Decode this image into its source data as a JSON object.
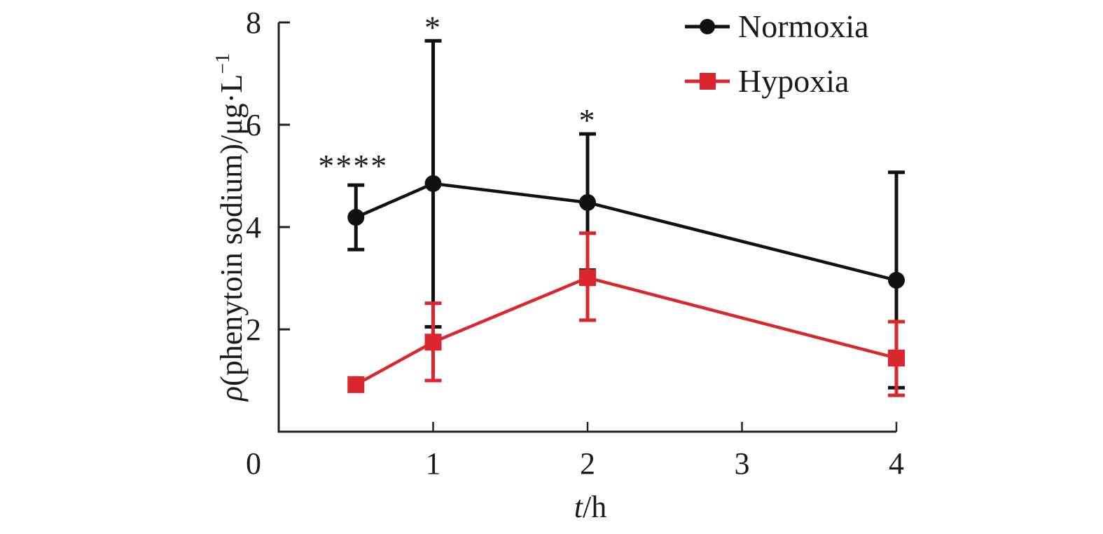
{
  "chart_data": {
    "type": "line",
    "title": "",
    "xlabel": {
      "italic": "t",
      "rest": "/h"
    },
    "ylabel": {
      "italic": "ρ",
      "rest": "(phenytoin sodium)/μg·L",
      "superscript": "−1"
    },
    "xlim": [
      0,
      4
    ],
    "ylim": [
      0,
      8
    ],
    "xticks": [
      0,
      1,
      2,
      3,
      4
    ],
    "yticks": [
      2,
      4,
      6,
      8
    ],
    "xtick_labels": [
      "0",
      "1",
      "2",
      "3",
      "4"
    ],
    "ytick_labels": [
      "2",
      "4",
      "6",
      "8"
    ],
    "origin_label": "0",
    "grid": false,
    "legend_position": "top-right",
    "series": [
      {
        "name": "Normoxia",
        "color": "#111111",
        "marker": "circle",
        "x": [
          0.5,
          1,
          2,
          4
        ],
        "y": [
          4.19,
          4.85,
          4.48,
          2.96
        ],
        "err_upper": [
          4.82,
          7.64,
          5.82,
          5.07
        ],
        "err_lower": [
          3.56,
          2.05,
          3.16,
          0.86
        ]
      },
      {
        "name": "Hypoxia",
        "color": "#D9272D",
        "marker": "square",
        "x": [
          0.5,
          1,
          2,
          4
        ],
        "y": [
          0.92,
          1.75,
          3.01,
          1.44
        ],
        "err_upper": [
          0.92,
          2.51,
          3.88,
          2.15
        ],
        "err_lower": [
          0.92,
          1.0,
          2.18,
          0.71
        ]
      }
    ],
    "annotations": [
      {
        "x": 0.5,
        "y": 4.82,
        "text": "****"
      },
      {
        "x": 1,
        "y": 7.64,
        "text": "*"
      },
      {
        "x": 2,
        "y": 5.82,
        "text": "*"
      }
    ]
  }
}
